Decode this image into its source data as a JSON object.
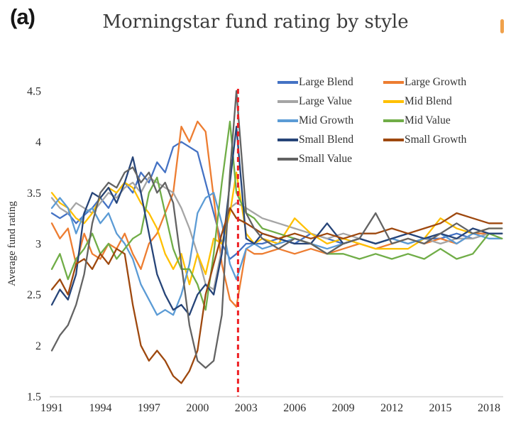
{
  "panel_label": "(a)",
  "title": "Morningstar fund rating by style",
  "colors": {
    "axis_line": "#d6d6d6",
    "tick_text": "#2e2e2e",
    "title_text": "#3b3b3b",
    "event_line": "#ee2024",
    "edge_fragment": "#f0a14b"
  },
  "chart_data": {
    "type": "line",
    "title": "Morningstar fund rating by style",
    "xlabel": "",
    "ylabel": "Average fund rating",
    "xlim": [
      1991,
      2018.8
    ],
    "ylim": [
      1.5,
      4.5
    ],
    "grid": false,
    "legend_position": "top-right-inside",
    "x_ticks": [
      1991,
      1994,
      1997,
      2000,
      2003,
      2006,
      2009,
      2012,
      2015,
      2018
    ],
    "x_tick_labels": [
      "1991",
      "1994",
      "1997",
      "2000",
      "2003",
      "2006",
      "2009",
      "2012",
      "2015",
      "2018"
    ],
    "y_ticks": [
      1.5,
      2,
      2.5,
      3,
      3.5,
      4,
      4.5
    ],
    "y_tick_labels": [
      "1.5",
      "2",
      "2.5",
      "3",
      "3.5",
      "4",
      "4.5"
    ],
    "vline": {
      "x": 2002.5,
      "color": "#ee2024",
      "style": "dashed",
      "width": 3
    },
    "x": [
      1991,
      1991.5,
      1992,
      1992.5,
      1993,
      1993.5,
      1994,
      1994.5,
      1995,
      1995.5,
      1996,
      1996.5,
      1997,
      1997.5,
      1998,
      1998.5,
      1999,
      1999.5,
      2000,
      2000.5,
      2001,
      2001.5,
      2002,
      2002.4,
      2003,
      2003.5,
      2004,
      2005,
      2006,
      2007,
      2008,
      2009,
      2010,
      2011,
      2012,
      2013,
      2014,
      2015,
      2016,
      2017,
      2018,
      2018.8
    ],
    "series": [
      {
        "name": "Large Blend",
        "color": "#4472C4",
        "values": [
          3.3,
          3.25,
          3.3,
          3.2,
          3.28,
          3.35,
          3.45,
          3.35,
          3.5,
          3.6,
          3.5,
          3.7,
          3.6,
          3.8,
          3.7,
          3.95,
          4.0,
          3.95,
          3.9,
          3.6,
          3.3,
          3.0,
          2.85,
          2.9,
          3.0,
          3.0,
          3.0,
          3.05,
          3.0,
          3.1,
          3.05,
          3.0,
          3.05,
          3.0,
          3.05,
          3.1,
          3.05,
          3.05,
          3.1,
          3.05,
          3.1,
          3.1
        ]
      },
      {
        "name": "Large Growth",
        "color": "#ED7D31",
        "values": [
          3.2,
          3.05,
          3.15,
          2.8,
          3.1,
          2.9,
          2.85,
          3.0,
          2.95,
          3.1,
          2.9,
          2.75,
          3.0,
          3.1,
          3.3,
          3.5,
          4.15,
          4.0,
          4.2,
          4.1,
          3.45,
          2.8,
          2.45,
          2.38,
          2.95,
          2.9,
          2.9,
          2.95,
          2.9,
          2.95,
          2.9,
          2.95,
          3.0,
          2.95,
          3.0,
          3.05,
          3.0,
          3.05,
          3.0,
          3.1,
          3.1,
          3.1
        ]
      },
      {
        "name": "Large Value",
        "color": "#A5A5A5",
        "values": [
          3.45,
          3.35,
          3.3,
          3.4,
          3.35,
          3.3,
          3.4,
          3.5,
          3.45,
          3.55,
          3.6,
          3.5,
          3.65,
          3.6,
          3.55,
          3.5,
          3.35,
          3.15,
          2.9,
          2.6,
          2.55,
          2.95,
          3.35,
          3.4,
          3.35,
          3.3,
          3.25,
          3.2,
          3.15,
          3.1,
          3.05,
          3.1,
          3.05,
          3.0,
          3.05,
          3.0,
          3.05,
          3.0,
          3.05,
          3.05,
          3.1,
          3.1
        ]
      },
      {
        "name": "Mid Blend",
        "color": "#FFC000",
        "values": [
          3.5,
          3.4,
          3.35,
          3.25,
          3.2,
          3.3,
          3.45,
          3.55,
          3.5,
          3.6,
          3.55,
          3.4,
          3.3,
          3.15,
          2.9,
          2.75,
          2.9,
          2.6,
          2.9,
          2.7,
          3.05,
          3.0,
          3.3,
          3.7,
          3.1,
          3.0,
          3.05,
          3.0,
          3.25,
          3.1,
          3.0,
          3.05,
          3.0,
          2.95,
          2.95,
          2.95,
          3.05,
          3.25,
          3.15,
          3.1,
          3.15,
          3.15
        ]
      },
      {
        "name": "Mid Growth",
        "color": "#5B9BD5",
        "values": [
          3.35,
          3.45,
          3.35,
          3.1,
          3.3,
          3.35,
          3.2,
          3.3,
          3.1,
          3.0,
          2.85,
          2.6,
          2.45,
          2.3,
          2.35,
          2.3,
          2.5,
          2.8,
          3.3,
          3.45,
          3.5,
          3.2,
          2.8,
          2.65,
          2.95,
          3.0,
          2.95,
          3.0,
          3.05,
          3.0,
          2.95,
          3.0,
          3.05,
          3.0,
          3.05,
          3.0,
          3.05,
          3.1,
          3.0,
          3.1,
          3.05,
          3.05
        ]
      },
      {
        "name": "Mid Value",
        "color": "#70AD47",
        "values": [
          2.75,
          2.9,
          2.65,
          2.85,
          2.95,
          3.1,
          2.9,
          3.0,
          2.85,
          2.95,
          3.05,
          3.1,
          3.5,
          3.65,
          3.3,
          2.95,
          2.75,
          2.75,
          2.6,
          2.35,
          2.9,
          3.6,
          4.2,
          3.5,
          3.3,
          3.25,
          3.15,
          3.1,
          3.05,
          3.0,
          2.9,
          2.9,
          2.85,
          2.9,
          2.85,
          2.9,
          2.85,
          2.95,
          2.85,
          2.9,
          3.1,
          3.05
        ]
      },
      {
        "name": "Small Blend",
        "color": "#264478",
        "values": [
          2.4,
          2.55,
          2.45,
          2.7,
          3.3,
          3.5,
          3.45,
          3.55,
          3.4,
          3.6,
          3.85,
          3.5,
          3.1,
          2.7,
          2.5,
          2.35,
          2.4,
          2.3,
          2.5,
          2.6,
          2.5,
          2.9,
          3.6,
          4.15,
          3.05,
          3.0,
          3.1,
          3.05,
          3.0,
          3.0,
          3.2,
          3.0,
          3.05,
          3.0,
          3.05,
          3.1,
          3.05,
          3.1,
          3.05,
          3.15,
          3.1,
          3.1
        ]
      },
      {
        "name": "Small Growth",
        "color": "#9E480E",
        "values": [
          2.55,
          2.65,
          2.5,
          2.8,
          2.85,
          2.75,
          2.9,
          2.8,
          2.95,
          2.9,
          2.4,
          2.0,
          1.85,
          1.95,
          1.85,
          1.7,
          1.63,
          1.75,
          1.95,
          2.5,
          2.8,
          3.1,
          3.35,
          3.25,
          3.2,
          3.15,
          3.1,
          3.05,
          3.1,
          3.05,
          3.1,
          3.05,
          3.1,
          3.1,
          3.15,
          3.1,
          3.15,
          3.2,
          3.3,
          3.25,
          3.2,
          3.2
        ]
      },
      {
        "name": "Small Value",
        "color": "#636363",
        "values": [
          1.95,
          2.1,
          2.2,
          2.4,
          2.7,
          3.2,
          3.5,
          3.6,
          3.55,
          3.7,
          3.75,
          3.6,
          3.7,
          3.5,
          3.6,
          3.4,
          2.8,
          2.2,
          1.85,
          1.78,
          1.85,
          2.3,
          3.7,
          4.5,
          3.3,
          3.15,
          3.05,
          2.95,
          3.05,
          3.0,
          2.9,
          3.0,
          3.05,
          3.3,
          3.0,
          3.05,
          3.0,
          3.1,
          3.2,
          3.1,
          3.15,
          3.15
        ]
      }
    ]
  }
}
